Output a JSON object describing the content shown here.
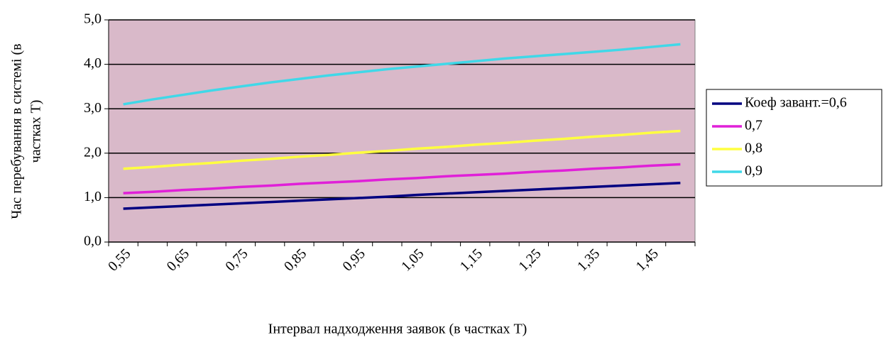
{
  "chart_data": {
    "type": "line",
    "y_label": [
      "Час перебування в системі (в",
      "частках Т)"
    ],
    "x_label": "Інтервал надходження заявок (в частках Т)",
    "categories": [
      "0,55",
      null,
      "0,65",
      null,
      "0,75",
      null,
      "0,85",
      null,
      "0,95",
      null,
      "1,05",
      null,
      "1,15",
      null,
      "1,25",
      null,
      "1,35",
      null,
      "1,45",
      null
    ],
    "series": [
      {
        "name": "Коеф завант.=0,6",
        "color": "#000080",
        "values": [
          0.75,
          0.78,
          0.81,
          0.84,
          0.87,
          0.9,
          0.93,
          0.96,
          0.99,
          1.02,
          1.06,
          1.09,
          1.12,
          1.15,
          1.18,
          1.21,
          1.24,
          1.27,
          1.3,
          1.33
        ]
      },
      {
        "name": "0,7",
        "color": "#e020d8",
        "values": [
          1.1,
          1.13,
          1.17,
          1.2,
          1.24,
          1.27,
          1.31,
          1.34,
          1.37,
          1.41,
          1.44,
          1.48,
          1.51,
          1.54,
          1.58,
          1.61,
          1.65,
          1.68,
          1.72,
          1.75
        ]
      },
      {
        "name": "0,8",
        "color": "#ffff40",
        "values": [
          1.65,
          1.69,
          1.74,
          1.78,
          1.83,
          1.87,
          1.92,
          1.96,
          2.01,
          2.05,
          2.1,
          2.14,
          2.19,
          2.23,
          2.28,
          2.32,
          2.37,
          2.41,
          2.46,
          2.5
        ]
      },
      {
        "name": "0,9",
        "color": "#40d8e8",
        "values": [
          3.1,
          3.21,
          3.31,
          3.41,
          3.5,
          3.59,
          3.67,
          3.75,
          3.82,
          3.89,
          3.95,
          4.01,
          4.07,
          4.13,
          4.18,
          4.23,
          4.28,
          4.33,
          4.39,
          4.45
        ]
      }
    ],
    "ylim": [
      0,
      5
    ],
    "yticks": [
      {
        "value": 0,
        "label": "0,0"
      },
      {
        "value": 1,
        "label": "1,0"
      },
      {
        "value": 2,
        "label": "2,0"
      },
      {
        "value": 3,
        "label": "3,0"
      },
      {
        "value": 4,
        "label": "4,0"
      },
      {
        "value": 5,
        "label": "5,0"
      }
    ],
    "grid": true,
    "legend": "right",
    "plot_color": "#d9b9c9"
  }
}
